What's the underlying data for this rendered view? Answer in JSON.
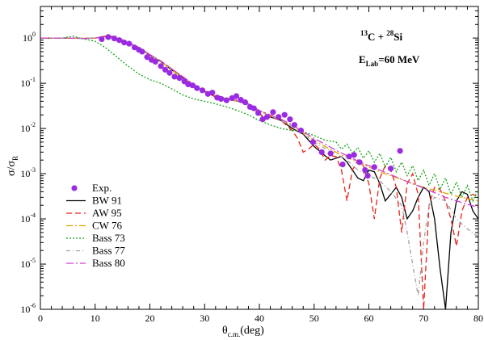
{
  "chart_data": {
    "type": "line",
    "xlabel": "θ",
    "xlabel_sub": "c.m.",
    "xlabel_unit": "(deg)",
    "ylabel": "σ/σ",
    "ylabel_sub": "R",
    "xlim": [
      0,
      80
    ],
    "ylim": [
      1e-06,
      5
    ],
    "yscale": "log",
    "x_ticks": [
      "0",
      "10",
      "20",
      "30",
      "40",
      "50",
      "60",
      "70",
      "80"
    ],
    "y_ticks": [
      {
        "base": "10",
        "exp": "0"
      },
      {
        "base": "10",
        "exp": "-1"
      },
      {
        "base": "10",
        "exp": "-2"
      },
      {
        "base": "10",
        "exp": "-3"
      },
      {
        "base": "10",
        "exp": "-4"
      },
      {
        "base": "10",
        "exp": "-5"
      },
      {
        "base": "10",
        "exp": "-6"
      }
    ],
    "annotation": {
      "line1_sup1": "13",
      "line1_a": "C + ",
      "line1_sup2": "28",
      "line1_b": "Si",
      "line2_a": "E",
      "line2_sub": "Lab",
      "line2_b": "=60 MeV"
    },
    "legend_position": "bottom-left",
    "colors": {
      "exp": "#9a2be2",
      "bw91": "#000000",
      "aw95": "#e8231a",
      "cw76": "#e2a800",
      "bass73": "#1aa31a",
      "bass77": "#a0a0a0",
      "bass80": "#d43fd4"
    },
    "experimental": {
      "name": "Exp.",
      "points": [
        [
          11.2,
          0.95
        ],
        [
          12.4,
          1.05
        ],
        [
          13.5,
          0.98
        ],
        [
          14.4,
          0.9
        ],
        [
          15.3,
          0.8
        ],
        [
          16.2,
          0.75
        ],
        [
          17.2,
          0.62
        ],
        [
          18.0,
          0.55
        ],
        [
          18.6,
          0.5
        ],
        [
          19.5,
          0.38
        ],
        [
          20.3,
          0.33
        ],
        [
          21.0,
          0.3
        ],
        [
          22.0,
          0.24
        ],
        [
          22.8,
          0.2
        ],
        [
          23.6,
          0.17
        ],
        [
          24.5,
          0.14
        ],
        [
          25.4,
          0.13
        ],
        [
          26.3,
          0.11
        ],
        [
          27.0,
          0.095
        ],
        [
          27.8,
          0.09
        ],
        [
          28.6,
          0.078
        ],
        [
          29.6,
          0.07
        ],
        [
          30.6,
          0.058
        ],
        [
          31.4,
          0.062
        ],
        [
          32.3,
          0.048
        ],
        [
          33.0,
          0.045
        ],
        [
          34.0,
          0.042
        ],
        [
          35.0,
          0.047
        ],
        [
          35.8,
          0.052
        ],
        [
          36.6,
          0.043
        ],
        [
          37.4,
          0.038
        ],
        [
          38.3,
          0.03
        ],
        [
          39.0,
          0.028
        ],
        [
          39.8,
          0.022
        ],
        [
          40.6,
          0.016
        ],
        [
          41.4,
          0.018
        ],
        [
          42.5,
          0.023
        ],
        [
          43.5,
          0.018
        ],
        [
          44.6,
          0.02
        ],
        [
          45.6,
          0.016
        ],
        [
          46.4,
          0.012
        ],
        [
          47.6,
          0.009
        ],
        [
          49.8,
          0.005
        ],
        [
          51.4,
          0.003
        ],
        [
          53.0,
          0.0028
        ],
        [
          55.2,
          0.0016
        ],
        [
          56.4,
          0.0024
        ],
        [
          57.3,
          0.0026
        ],
        [
          58.3,
          0.0018
        ],
        [
          59.3,
          0.0012
        ],
        [
          59.8,
          0.0009
        ],
        [
          61.0,
          0.0014
        ],
        [
          64.0,
          0.0013
        ],
        [
          65.7,
          0.0032
        ]
      ]
    },
    "series": [
      {
        "name": "BW 91",
        "key": "bw91",
        "dash": "",
        "x": [
          0,
          5,
          8,
          10,
          12,
          13,
          15,
          18,
          20,
          22,
          25,
          28,
          30,
          32,
          34,
          36,
          38,
          40,
          41,
          42,
          44,
          46,
          48,
          50,
          52,
          53,
          54,
          55,
          56,
          57,
          58,
          59,
          60,
          61,
          62,
          63,
          64,
          65,
          66,
          67,
          68,
          69,
          70,
          71,
          72,
          73,
          74,
          75,
          76,
          77,
          78,
          79,
          80
        ],
        "y": [
          1,
          1,
          0.98,
          1.0,
          1.1,
          1.05,
          0.9,
          0.6,
          0.42,
          0.3,
          0.16,
          0.09,
          0.065,
          0.05,
          0.045,
          0.04,
          0.035,
          0.022,
          0.016,
          0.018,
          0.015,
          0.01,
          0.0075,
          0.004,
          0.0025,
          0.002,
          0.0022,
          0.0024,
          0.0018,
          0.0012,
          0.0008,
          0.0007,
          0.0012,
          0.0011,
          0.0006,
          0.00025,
          0.00035,
          0.0005,
          0.0003,
          0.0001,
          0.00015,
          0.0003,
          0.0005,
          0.0004,
          0.0001,
          8e-06,
          1e-06,
          5e-05,
          0.00025,
          0.0004,
          0.00035,
          0.00015,
          0.0001
        ]
      },
      {
        "name": "AW 95",
        "key": "aw95",
        "dash": "7,4",
        "x": [
          0,
          5,
          8,
          10,
          12,
          13,
          15,
          18,
          20,
          22,
          25,
          28,
          30,
          32,
          34,
          36,
          38,
          40,
          41,
          42,
          44,
          46,
          47,
          48,
          49,
          50,
          51,
          52,
          53,
          54,
          55,
          56,
          57,
          58,
          59,
          60,
          61,
          62,
          63,
          64,
          65,
          66,
          67,
          68,
          69,
          70,
          71,
          72,
          73,
          74,
          75,
          76,
          77,
          78,
          79,
          80
        ],
        "y": [
          1,
          1,
          0.98,
          1.0,
          1.1,
          1.1,
          0.92,
          0.62,
          0.43,
          0.31,
          0.17,
          0.09,
          0.066,
          0.05,
          0.045,
          0.04,
          0.033,
          0.022,
          0.016,
          0.018,
          0.015,
          0.009,
          0.006,
          0.003,
          0.0035,
          0.0045,
          0.0035,
          0.002,
          0.0025,
          0.0024,
          0.0012,
          0.00025,
          0.0012,
          0.002,
          0.0015,
          0.0006,
          0.0001,
          0.0008,
          0.0015,
          0.0012,
          0.0005,
          5e-05,
          0.0006,
          0.001,
          0.00035,
          1e-06,
          0.0002,
          0.0005,
          0.00045,
          0.00025,
          0.0001,
          2.5e-05,
          0.00015,
          0.0003,
          0.00035,
          0.0003
        ]
      },
      {
        "name": "CW 76",
        "key": "cw76",
        "dash": "8,3,2,3",
        "x": [
          0,
          5,
          8,
          10,
          12,
          13,
          15,
          18,
          20,
          22,
          25,
          28,
          30,
          32,
          34,
          36,
          38,
          40,
          42,
          44,
          46,
          48,
          50,
          52,
          54,
          56,
          58,
          60,
          62,
          64,
          66,
          68,
          70,
          72,
          74,
          76,
          78,
          80
        ],
        "y": [
          1,
          1,
          0.99,
          1.0,
          1.08,
          1.05,
          0.9,
          0.6,
          0.42,
          0.3,
          0.16,
          0.09,
          0.066,
          0.052,
          0.045,
          0.04,
          0.034,
          0.025,
          0.019,
          0.016,
          0.011,
          0.008,
          0.0055,
          0.004,
          0.003,
          0.0023,
          0.0018,
          0.0014,
          0.0011,
          0.0009,
          0.00075,
          0.0006,
          0.0005,
          0.00043,
          0.00037,
          0.00032,
          0.00028,
          0.00025
        ]
      },
      {
        "name": "Bass 73",
        "key": "bass73",
        "dash": "2,2",
        "x": [
          0,
          4,
          6,
          8,
          10,
          12,
          14,
          16,
          18,
          20,
          22,
          24,
          26,
          28,
          30,
          32,
          34,
          36,
          38,
          40,
          42,
          44,
          46,
          48,
          50,
          52,
          54,
          55,
          56,
          57,
          58,
          59,
          60,
          61,
          62,
          63,
          64,
          65,
          66,
          67,
          68,
          69,
          70,
          71,
          72,
          73,
          74,
          75,
          76,
          77,
          78,
          79,
          80
        ],
        "y": [
          1,
          1,
          1.1,
          0.95,
          0.85,
          0.6,
          0.38,
          0.24,
          0.16,
          0.12,
          0.1,
          0.075,
          0.055,
          0.045,
          0.04,
          0.035,
          0.03,
          0.025,
          0.02,
          0.015,
          0.012,
          0.01,
          0.009,
          0.0085,
          0.007,
          0.0055,
          0.005,
          0.0035,
          0.0045,
          0.0028,
          0.0038,
          0.0022,
          0.0032,
          0.0018,
          0.0028,
          0.0014,
          0.0023,
          0.0011,
          0.0018,
          0.0009,
          0.0015,
          0.0007,
          0.0012,
          0.00055,
          0.001,
          0.00045,
          0.0008,
          0.00035,
          0.00065,
          0.0003,
          0.00055,
          0.00025,
          0.00045
        ]
      },
      {
        "name": "Bass 77",
        "key": "bass77",
        "dash": "5,3,1,3",
        "x": [
          0,
          5,
          8,
          10,
          12,
          13,
          15,
          18,
          20,
          22,
          25,
          28,
          30,
          32,
          34,
          36,
          38,
          40,
          42,
          44,
          46,
          48,
          50,
          52,
          54,
          56,
          58,
          60,
          62,
          64,
          66,
          67,
          68,
          69,
          70,
          71,
          72,
          74,
          76,
          78,
          80
        ],
        "y": [
          1,
          1,
          0.98,
          1.0,
          1.05,
          1.02,
          0.88,
          0.6,
          0.43,
          0.31,
          0.17,
          0.095,
          0.07,
          0.055,
          0.047,
          0.04,
          0.033,
          0.024,
          0.019,
          0.015,
          0.011,
          0.0075,
          0.005,
          0.0036,
          0.0028,
          0.002,
          0.0012,
          0.0009,
          0.0007,
          0.0004,
          0.0002,
          5e-05,
          1e-05,
          2e-06,
          3e-05,
          0.0002,
          0.0003,
          0.00025,
          0.0001,
          6e-05,
          4e-05
        ]
      },
      {
        "name": "Bass 80",
        "key": "bass80",
        "dash": "9,3,2,3",
        "x": [
          0,
          5,
          8,
          10,
          12,
          13,
          15,
          18,
          20,
          22,
          25,
          28,
          30,
          32,
          34,
          36,
          38,
          40,
          42,
          44,
          46,
          48,
          50,
          52,
          54,
          56,
          58,
          60,
          62,
          64,
          66,
          68,
          70,
          72,
          74,
          76,
          78,
          80
        ],
        "y": [
          1,
          1,
          0.98,
          1.0,
          1.06,
          1.02,
          0.9,
          0.6,
          0.43,
          0.31,
          0.17,
          0.095,
          0.068,
          0.053,
          0.047,
          0.042,
          0.035,
          0.025,
          0.02,
          0.016,
          0.012,
          0.0085,
          0.006,
          0.0045,
          0.0033,
          0.0025,
          0.0019,
          0.0015,
          0.0012,
          0.00095,
          0.00075,
          0.0006,
          0.00048,
          0.00038,
          0.0003,
          0.00025,
          0.00021,
          0.00018
        ]
      }
    ]
  }
}
